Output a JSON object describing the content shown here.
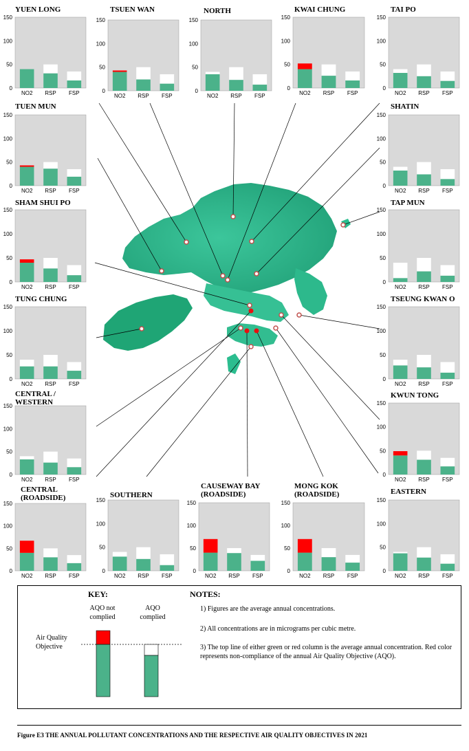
{
  "chart_data": {
    "type": "bar",
    "pollutants": [
      "NO2",
      "RSP",
      "FSP"
    ],
    "objectives": [
      40,
      50,
      35
    ],
    "ylim": [
      0,
      150
    ],
    "yticks": [
      0,
      50,
      100,
      150
    ],
    "stations": [
      {
        "name": "YUEN LONG",
        "values": [
          40,
          31,
          16
        ]
      },
      {
        "name": "TSUEN WAN",
        "values": [
          43,
          24,
          15
        ]
      },
      {
        "name": "NORTH",
        "values": [
          35,
          23,
          13
        ]
      },
      {
        "name": "KWAI CHUNG",
        "values": [
          52,
          26,
          16
        ]
      },
      {
        "name": "TAI PO",
        "values": [
          32,
          25,
          15
        ]
      },
      {
        "name": "TUEN MUN",
        "values": [
          43,
          36,
          19
        ]
      },
      {
        "name": "SHATIN",
        "values": [
          32,
          24,
          14
        ]
      },
      {
        "name": "SHAM SHUI PO",
        "values": [
          47,
          28,
          14
        ]
      },
      {
        "name": "TAP MUN",
        "values": [
          8,
          22,
          13
        ]
      },
      {
        "name": "TUNG CHUNG",
        "values": [
          26,
          26,
          17
        ]
      },
      {
        "name": "TSEUNG KWAN O",
        "values": [
          28,
          24,
          13
        ]
      },
      {
        "name": "CENTRAL / WESTERN",
        "values": [
          33,
          26,
          16
        ]
      },
      {
        "name": "KWUN TONG",
        "values": [
          49,
          31,
          17
        ]
      },
      {
        "name": "CENTRAL (ROADSIDE)",
        "values": [
          67,
          30,
          17
        ]
      },
      {
        "name": "SOUTHERN",
        "values": [
          30,
          25,
          12
        ]
      },
      {
        "name": "CAUSEWAY BAY (ROADSIDE)",
        "values": [
          70,
          39,
          22
        ]
      },
      {
        "name": "MONG KOK (ROADSIDE)",
        "values": [
          70,
          30,
          18
        ]
      },
      {
        "name": "EASTERN",
        "values": [
          37,
          28,
          15
        ]
      }
    ]
  },
  "colors": {
    "green": "#4bb28a",
    "red": "#ff0000",
    "panel_bg": "#d9d9d9",
    "land": "#2bbd8f"
  },
  "key": {
    "title": "KEY:",
    "not_complied": "AQO not complied",
    "complied": "AQO complied",
    "objective_label": "Air Quality Objective"
  },
  "notes": {
    "title": "NOTES:",
    "items": [
      "1) Figures are the average annual concentrations.",
      "2) All concentrations are in micrograms per cubic metre.",
      "3) The top line of either green or red column is the average annual concentration. Red color represents non-compliance of the annual Air Quality Objective (AQO)."
    ]
  },
  "caption": "Figure E3 THE ANNUAL POLLUTANT CONCENTRATIONS AND THE RESPECTIVE AIR QUALITY OBJECTIVES IN 2021"
}
